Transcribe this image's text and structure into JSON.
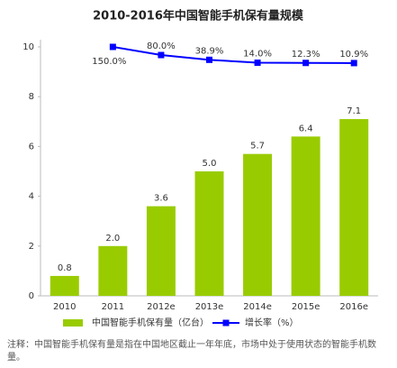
{
  "chart_data": {
    "type": "bar_line",
    "title": "2010-2016年中国智能手机保有量规模",
    "categories": [
      "2010",
      "2011",
      "2012e",
      "2013e",
      "2014e",
      "2015e",
      "2016e"
    ],
    "series": [
      {
        "name": "中国智能手机保有量（亿台）",
        "type": "bar",
        "color": "#99cc00",
        "values": [
          0.8,
          2.0,
          3.6,
          5.0,
          5.7,
          6.4,
          7.1
        ],
        "value_labels": [
          "0.8",
          "2.0",
          "3.6",
          "5.0",
          "5.7",
          "6.4",
          "7.1"
        ]
      },
      {
        "name": "增长率（%）",
        "type": "line",
        "axis": "y2",
        "color": "#0000ff",
        "values": [
          null,
          150.0,
          80.0,
          38.9,
          14.0,
          12.3,
          10.9
        ],
        "value_labels": [
          null,
          "150.0%",
          "80.0%",
          "38.9%",
          "14.0%",
          "12.3%",
          "10.9%"
        ]
      }
    ],
    "ylim": [
      0,
      10
    ],
    "yticks": [
      0,
      2,
      4,
      6,
      8,
      10
    ],
    "y2lim": [
      -1990,
      150
    ],
    "note": "注释：中国智能手机保有量是指在中国地区截止一年年底，市场中处于使用状态的智能手机数量。"
  }
}
